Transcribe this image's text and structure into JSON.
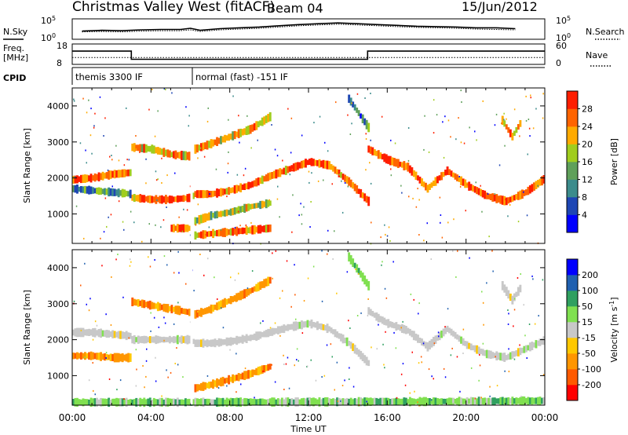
{
  "header": {
    "station": "Christmas Valley West (fitACF)",
    "beam": "Beam 04",
    "date": "15/Jun/2012"
  },
  "side_labels": {
    "nsky": "N.Sky",
    "nsearch": "N.Search",
    "freq": "Freq.",
    "freq_unit": "[MHz]",
    "nave": "Nave",
    "cpid": "CPID"
  },
  "chart_data": [
    {
      "type": "line",
      "panel": "noise",
      "series": [
        {
          "name": "N.Sky",
          "values": [
            2.0,
            2.2,
            2.1,
            2.3,
            2.4,
            2.4,
            2.7,
            2.2,
            2.6,
            2.8,
            3.0,
            3.3,
            3.6,
            3.8,
            4.0,
            3.8,
            3.6,
            3.4,
            3.2,
            3.1,
            3.0,
            2.8,
            2.8,
            2.6
          ]
        },
        {
          "name": "N.Search",
          "values": [
            1.8,
            1.9,
            1.8,
            2.0,
            2.1,
            2.1,
            2.3,
            1.9,
            2.3,
            2.5,
            2.7,
            3.0,
            3.3,
            3.5,
            3.7,
            3.5,
            3.3,
            3.1,
            2.9,
            2.8,
            2.7,
            2.5,
            2.4,
            2.3
          ]
        }
      ],
      "x": [
        0.5,
        1.5,
        2.5,
        3.5,
        4.5,
        5.5,
        6.0,
        6.5,
        7.5,
        8.5,
        9.5,
        10.5,
        11.5,
        12.5,
        13.5,
        14.5,
        15.5,
        16.5,
        17.5,
        18.5,
        19.5,
        20.5,
        21.5,
        22.5
      ],
      "y_left_ticks": [
        "10^5",
        "10^0"
      ],
      "y_right_ticks": [
        "10^5",
        "10^0"
      ]
    },
    {
      "type": "line",
      "panel": "frequency",
      "series": [
        {
          "name": "Freq.",
          "x": [
            0,
            3.0,
            3.0,
            6.0,
            6.2,
            15.0,
            15.0,
            24.0
          ],
          "values": [
            14.5,
            14.5,
            10.5,
            10.5,
            10.5,
            10.5,
            14.5,
            14.5
          ]
        },
        {
          "name": "Nave",
          "x": [
            0,
            24.0
          ],
          "values": [
            20,
            20
          ]
        }
      ],
      "y_left_ticks": [
        "18",
        "8"
      ],
      "y_right_ticks": [
        "60",
        "0"
      ],
      "ylim_left": [
        8,
        18
      ],
      "ylim_right": [
        0,
        60
      ]
    },
    {
      "type": "table",
      "panel": "cpid",
      "entries": [
        {
          "label": "themis 3300 IF",
          "start": 0.0,
          "end": 6.1
        },
        {
          "label": "normal (fast) -151 IF",
          "start": 6.1,
          "end": 24.0
        }
      ]
    },
    {
      "type": "heatmap",
      "panel": "power",
      "xlabel": "",
      "ylabel": "Slant Range [km]",
      "xlim": [
        0,
        24
      ],
      "ylim": [
        180,
        4500
      ],
      "y_ticks": [
        1000,
        2000,
        3000,
        4000
      ],
      "colorbar": {
        "label": "Power [dB]",
        "range": [
          0,
          32
        ],
        "ticks": [
          "4",
          "8",
          "12",
          "16",
          "20",
          "24",
          "28"
        ],
        "colors": [
          "#0000ff",
          "#1e46b4",
          "#3c8c8c",
          "#5fa05a",
          "#a0cd1e",
          "#ffaa00",
          "#ff6400",
          "#ff1e00"
        ]
      },
      "bands": [
        {
          "x": [
            0,
            1,
            2,
            3,
            3,
            4,
            5,
            6,
            6.2,
            7,
            8,
            9,
            10,
            11,
            12,
            13,
            14,
            15
          ],
          "y": [
            1950,
            2000,
            2100,
            2150,
            1450,
            1400,
            1400,
            1450,
            1550,
            1550,
            1650,
            1800,
            2050,
            2250,
            2450,
            2350,
            1900,
            1350
          ],
          "level": 26
        },
        {
          "x": [
            15,
            15.5,
            16,
            17,
            18,
            19,
            20,
            21,
            22,
            23,
            24
          ],
          "y": [
            2800,
            2650,
            2500,
            2300,
            1700,
            2200,
            1800,
            1500,
            1350,
            1600,
            2000
          ],
          "level": 27
        },
        {
          "x": [
            0,
            1,
            2,
            3
          ],
          "y": [
            1700,
            1650,
            1600,
            1550
          ],
          "level": 12
        },
        {
          "x": [
            3,
            4,
            5,
            6
          ],
          "y": [
            2850,
            2800,
            2650,
            2600
          ],
          "level": 22
        },
        {
          "x": [
            6.2,
            7,
            8,
            9,
            10
          ],
          "y": [
            2800,
            2950,
            3150,
            3350,
            3700
          ],
          "level": 22
        },
        {
          "x": [
            6.2,
            7,
            8,
            9,
            10
          ],
          "y": [
            800,
            950,
            1050,
            1200,
            1300
          ],
          "level": 18
        },
        {
          "x": [
            5,
            6
          ],
          "y": [
            600,
            600
          ],
          "level": 28
        },
        {
          "x": [
            6.2,
            7,
            8,
            9,
            10
          ],
          "y": [
            400,
            450,
            500,
            550,
            600
          ],
          "level": 26
        },
        {
          "x": [
            21.8,
            22.3,
            22.8
          ],
          "y": [
            3600,
            3150,
            3600
          ],
          "level": 24
        },
        {
          "x": [
            14.0,
            14.5,
            15.0
          ],
          "y": [
            4200,
            3800,
            3400
          ],
          "level": 10
        }
      ]
    },
    {
      "type": "heatmap",
      "panel": "velocity",
      "xlabel": "Time UT",
      "ylabel": "Slant Range [km]",
      "xlim": [
        0,
        24
      ],
      "ylim": [
        180,
        4500
      ],
      "x_ticks": [
        "00:00",
        "04:00",
        "08:00",
        "12:00",
        "16:00",
        "20:00",
        "00:00"
      ],
      "y_ticks": [
        1000,
        2000,
        3000,
        4000
      ],
      "colorbar": {
        "label": "Velocity [m s^-1]",
        "ticks": [
          "-200",
          "-100",
          "-50",
          "-15",
          "15",
          "50",
          "100",
          "200"
        ],
        "colors": [
          "#ff0000",
          "#ff5a00",
          "#ff9600",
          "#ffc800",
          "#c8c8c8",
          "#80e050",
          "#30a060",
          "#2060b0",
          "#0000ff"
        ]
      },
      "bands": [
        {
          "x": [
            0,
            1,
            2,
            3,
            3,
            4,
            5,
            6,
            6.2,
            7,
            8,
            9,
            10,
            11,
            12,
            13,
            14,
            15
          ],
          "y": [
            2200,
            2200,
            2150,
            2100,
            2000,
            2000,
            2000,
            2000,
            1900,
            1900,
            1950,
            2050,
            2200,
            2350,
            2450,
            2300,
            1900,
            1350
          ],
          "velocity": 0
        },
        {
          "x": [
            15,
            15.5,
            16,
            17,
            18,
            19,
            20,
            21,
            22,
            23,
            24
          ],
          "y": [
            2800,
            2600,
            2450,
            2250,
            1800,
            2300,
            1850,
            1600,
            1500,
            1750,
            2000
          ],
          "velocity": 0
        },
        {
          "x": [
            3,
            4,
            5,
            6
          ],
          "y": [
            3050,
            2950,
            2850,
            2750
          ],
          "velocity": -60
        },
        {
          "x": [
            6.2,
            7,
            8,
            9,
            10
          ],
          "y": [
            2700,
            2850,
            3100,
            3350,
            3650
          ],
          "velocity": -60
        },
        {
          "x": [
            6.2,
            7,
            8,
            9,
            10
          ],
          "y": [
            650,
            750,
            900,
            1050,
            1250
          ],
          "velocity": -60
        },
        {
          "x": [
            0,
            1,
            2,
            3
          ],
          "y": [
            1550,
            1550,
            1500,
            1500
          ],
          "velocity": -80
        },
        {
          "x": [
            21.8,
            22.3,
            22.8
          ],
          "y": [
            3500,
            3100,
            3500
          ],
          "velocity": 0
        },
        {
          "x": [
            14.0,
            14.5,
            15.0
          ],
          "y": [
            4300,
            3900,
            3500
          ],
          "velocity": 40
        },
        {
          "x": [
            0,
            6,
            12,
            18,
            24
          ],
          "y": [
            260,
            260,
            270,
            280,
            300
          ],
          "velocity": 30
        }
      ]
    }
  ]
}
